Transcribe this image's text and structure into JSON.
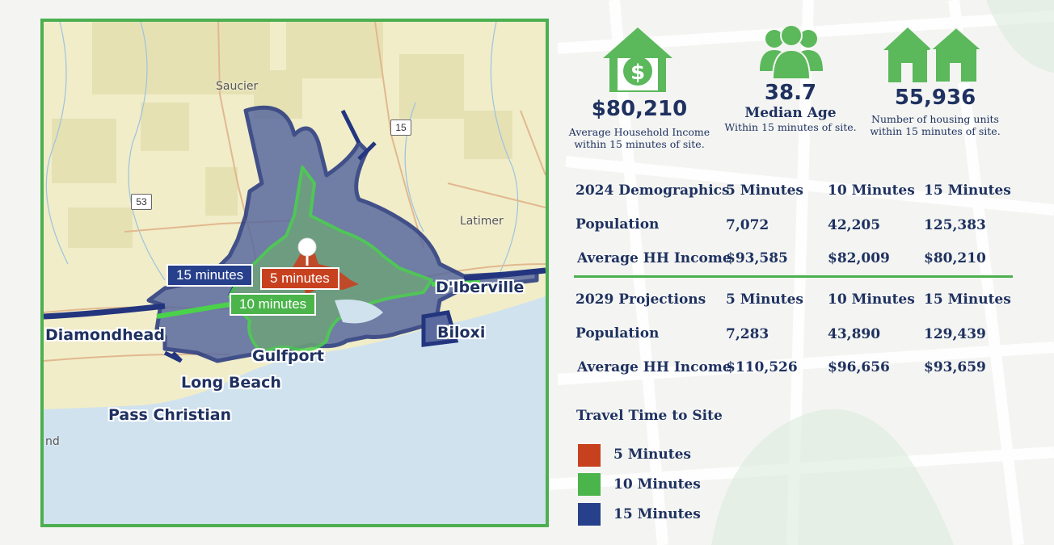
{
  "colors": {
    "brand_green": "#4caf50",
    "navy": "#1f3160",
    "minutes_5": "#c8411f",
    "minutes_10": "#4bb54b",
    "minutes_15": "#27408b"
  },
  "map": {
    "places": {
      "saucier": "Saucier",
      "latimer": "Latimer",
      "diberville": "D'Iberville",
      "diamondhead": "Diamondhead",
      "gulfport": "Gulfport",
      "biloxi": "Biloxi",
      "long_beach": "Long Beach",
      "pass_christian": "Pass Christian",
      "partial_label": "nd"
    },
    "highways": {
      "hwy_15": "15",
      "hwy_53": "53"
    },
    "badges": {
      "min15": "15 minutes",
      "min5": "5 minutes",
      "min10": "10 minutes"
    }
  },
  "stats": {
    "income": {
      "icon": "house-dollar-icon",
      "value": "$80,210",
      "desc1": "Average Household Income",
      "desc2": "within 15 minutes of site."
    },
    "age": {
      "icon": "people-group-icon",
      "value": "38.7",
      "label": "Median Age",
      "desc1": "Within 15 minutes of site."
    },
    "housing": {
      "icon": "houses-icon",
      "value": "55,936",
      "desc1": "Number of housing units",
      "desc2": "within 15 minutes of site."
    }
  },
  "demographics_2024": {
    "headers": [
      "2024 Demographics",
      "5 Minutes",
      "10 Minutes",
      "15 Minutes"
    ],
    "rows": [
      [
        "Population",
        "7,072",
        "42,205",
        "125,383"
      ],
      [
        "Average HH Income",
        "$93,585",
        "$82,009",
        "$80,210"
      ]
    ]
  },
  "projections_2029": {
    "headers": [
      "2029 Projections",
      "5 Minutes",
      "10 Minutes",
      "15 Minutes"
    ],
    "rows": [
      [
        "Population",
        "7,283",
        "43,890",
        "129,439"
      ],
      [
        "Average HH Income",
        "$110,526",
        "$96,656",
        "$93,659"
      ]
    ]
  },
  "legend": {
    "title": "Travel Time to Site",
    "items": [
      {
        "label": "5 Minutes",
        "color": "#c8411f"
      },
      {
        "label": "10 Minutes",
        "color": "#4bb54b"
      },
      {
        "label": "15 Minutes",
        "color": "#27408b"
      }
    ]
  }
}
